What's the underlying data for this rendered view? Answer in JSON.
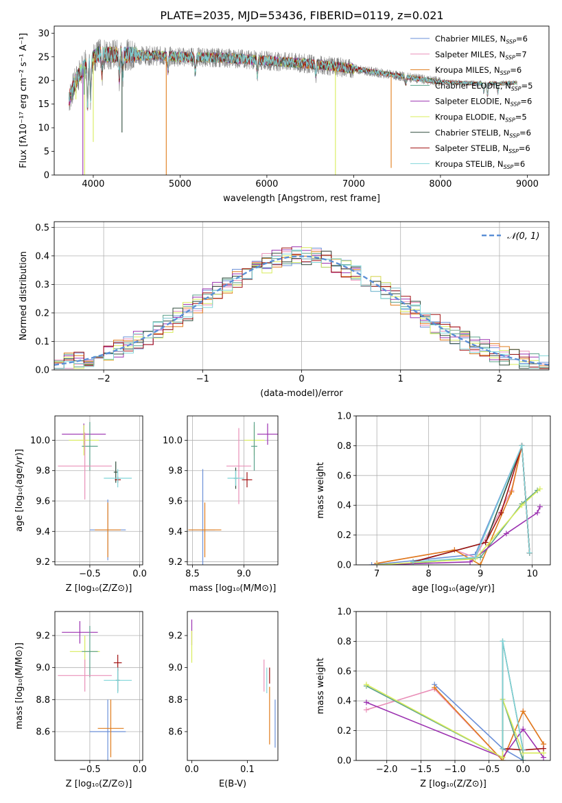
{
  "figure_title": "PLATE=2035, MJD=53436, FIBERID=0119, z=0.021",
  "colors": {
    "chabrier_miles": "#6a8fd8",
    "salpeter_miles": "#e98fb8",
    "kroupa_miles": "#e07b1a",
    "chabrier_elodie": "#5aa08a",
    "salpeter_elodie": "#9b30b0",
    "kroupa_elodie": "#d8ec5a",
    "chabrier_stelib": "#2d4a3a",
    "salpeter_stelib": "#a01010",
    "kroupa_stelib": "#7fd4d8",
    "data": "#808080",
    "normal_curve": "#5b8fd6"
  },
  "legend": [
    {
      "key": "chabrier_miles",
      "name": "Chabrier MILES, N",
      "sub": "SSP",
      "tail": "=6"
    },
    {
      "key": "salpeter_miles",
      "name": "Salpeter MILES, N",
      "sub": "SSP",
      "tail": "=7"
    },
    {
      "key": "kroupa_miles",
      "name": "Kroupa MILES, N",
      "sub": "SSP",
      "tail": "=6"
    },
    {
      "key": "chabrier_elodie",
      "name": "Chabrier ELODIE, N",
      "sub": "SSP",
      "tail": "=5"
    },
    {
      "key": "salpeter_elodie",
      "name": "Salpeter ELODIE, N",
      "sub": "SSP",
      "tail": "=6"
    },
    {
      "key": "kroupa_elodie",
      "name": "Kroupa ELODIE, N",
      "sub": "SSP",
      "tail": "=5"
    },
    {
      "key": "chabrier_stelib",
      "name": "Chabrier STELIB, N",
      "sub": "SSP",
      "tail": "=6"
    },
    {
      "key": "salpeter_stelib",
      "name": "Salpeter STELIB, N",
      "sub": "SSP",
      "tail": "=6"
    },
    {
      "key": "kroupa_stelib",
      "name": "Kroupa STELIB, N",
      "sub": "SSP",
      "tail": "=6"
    }
  ],
  "chart_data": [
    {
      "id": "spectrum",
      "type": "line",
      "xlabel": "wavelength [Angstrom, rest frame]",
      "ylabel": "Flux [fλ10⁻¹⁷ erg cm⁻² s⁻¹ A⁻¹]",
      "xlim": [
        3550,
        9250
      ],
      "ylim": [
        0,
        31.5
      ],
      "xticks": [
        4000,
        5000,
        6000,
        7000,
        8000,
        9000
      ],
      "yticks": [
        0,
        5,
        10,
        15,
        20,
        25,
        30
      ],
      "grid": false,
      "legend_position": "top-right",
      "x_range": [
        3720,
        8880
      ],
      "continuum": [
        [
          3720,
          16
        ],
        [
          3800,
          20
        ],
        [
          3900,
          23
        ],
        [
          4050,
          25.5
        ],
        [
          4300,
          25.5
        ],
        [
          5000,
          25
        ],
        [
          5500,
          24.8
        ],
        [
          6000,
          24.2
        ],
        [
          6500,
          23.5
        ],
        [
          7000,
          22.5
        ],
        [
          7500,
          21
        ],
        [
          8000,
          19.7
        ],
        [
          8500,
          19.3
        ],
        [
          8880,
          19.5
        ]
      ],
      "absorption_dips": [
        [
          3934,
          9
        ],
        [
          3969,
          7.5
        ],
        [
          4101,
          4
        ],
        [
          4300,
          5
        ],
        [
          4340,
          4
        ],
        [
          4861,
          3
        ],
        [
          5175,
          3
        ],
        [
          5890,
          3
        ],
        [
          6563,
          2
        ],
        [
          7600,
          1.5
        ],
        [
          8500,
          2
        ],
        [
          8542,
          2.5
        ],
        [
          8662,
          2
        ]
      ],
      "spikes": [
        [
          3880,
          0,
          "salpeter_elodie"
        ],
        [
          3900,
          0,
          "kroupa_elodie"
        ],
        [
          4841,
          0,
          "kroupa_miles"
        ],
        [
          6790,
          0,
          "kroupa_elodie"
        ],
        [
          7432,
          1.5,
          "kroupa_miles"
        ],
        [
          3800,
          16,
          "kroupa_elodie"
        ],
        [
          4000,
          7,
          "kroupa_elodie"
        ],
        [
          4331,
          9,
          "chabrier_stelib"
        ],
        [
          3895,
          17,
          "chabrier_elodie"
        ]
      ]
    },
    {
      "id": "residuals",
      "type": "histogram",
      "xlabel": "(data-model)/error",
      "ylabel": "Normed distribution",
      "xlim": [
        -2.5,
        2.5
      ],
      "ylim": [
        0,
        0.52
      ],
      "xticks": [
        -2,
        -1,
        0,
        1,
        2
      ],
      "yticks": [
        0,
        0.1,
        0.2,
        0.3,
        0.4,
        0.5
      ],
      "grid": true,
      "legend_position": "top-right",
      "legend_label": "𝒩(0, 1)",
      "bin_width": 0.1,
      "x_start": -2.5
    },
    {
      "id": "age_vs_Z",
      "type": "scatter",
      "xlabel": "Z [log₁₀(Z/Z⊙)]",
      "ylabel": "age  [log₁₀(age/yr)]",
      "xlim": [
        -0.85,
        0.03
      ],
      "ylim": [
        9.18,
        10.16
      ],
      "xticks": [
        -0.5,
        0.0
      ],
      "yticks": [
        9.2,
        9.4,
        9.6,
        9.8,
        10.0
      ],
      "grid": true,
      "points": [
        {
          "key": "salpeter_elodie",
          "x": -0.56,
          "y": 10.04,
          "xerr": 0.22,
          "yerr": 0.07
        },
        {
          "key": "kroupa_elodie",
          "x": -0.56,
          "y": 10.0,
          "xerr": 0.15,
          "yerr": 0.1
        },
        {
          "key": "chabrier_elodie",
          "x": -0.5,
          "y": 9.96,
          "xerr": 0.08,
          "yerr": 0.16
        },
        {
          "key": "salpeter_miles",
          "x": -0.55,
          "y": 9.83,
          "xerr": 0.27,
          "yerr": 0.22
        },
        {
          "key": "chabrier_miles",
          "x": -0.32,
          "y": 9.41,
          "xerr": 0.18,
          "yerr": 0.2
        },
        {
          "key": "kroupa_miles",
          "x": -0.32,
          "y": 9.41,
          "xerr": 0.13,
          "yerr": 0.18
        },
        {
          "key": "chabrier_stelib",
          "x": -0.24,
          "y": 9.79,
          "xerr": 0.02,
          "yerr": 0.07
        },
        {
          "key": "salpeter_stelib",
          "x": -0.22,
          "y": 9.74,
          "xerr": 0.03,
          "yerr": 0.02
        },
        {
          "key": "kroupa_stelib",
          "x": -0.22,
          "y": 9.75,
          "xerr": 0.14,
          "yerr": 0.06
        }
      ]
    },
    {
      "id": "age_vs_mass",
      "type": "scatter",
      "xlabel": "mass [log₁₀(M/M⊙)]",
      "ylabel": "",
      "xlim": [
        8.45,
        9.33
      ],
      "ylim": [
        9.18,
        10.16
      ],
      "xticks": [
        8.5,
        9.0
      ],
      "yticks": [
        9.2,
        9.4,
        9.6,
        9.8,
        10.0
      ],
      "grid": true,
      "points": [
        {
          "key": "salpeter_elodie",
          "x": 9.23,
          "y": 10.04,
          "xerr": 0.1,
          "yerr": 0.07
        },
        {
          "key": "kroupa_elodie",
          "x": 9.1,
          "y": 10.0,
          "xerr": 0.1,
          "yerr": 0.1
        },
        {
          "key": "chabrier_elodie",
          "x": 9.1,
          "y": 9.96,
          "xerr": 0.03,
          "yerr": 0.16
        },
        {
          "key": "salpeter_miles",
          "x": 8.95,
          "y": 9.83,
          "xerr": 0.12,
          "yerr": 0.25
        },
        {
          "key": "chabrier_miles",
          "x": 8.6,
          "y": 9.41,
          "xerr": 0.12,
          "yerr": 0.4
        },
        {
          "key": "kroupa_miles",
          "x": 8.62,
          "y": 9.41,
          "xerr": 0.16,
          "yerr": 0.18
        },
        {
          "key": "chabrier_stelib",
          "x": 8.92,
          "y": 9.75,
          "xerr": 0.02,
          "yerr": 0.07
        },
        {
          "key": "salpeter_stelib",
          "x": 9.03,
          "y": 9.74,
          "xerr": 0.05,
          "yerr": 0.05
        },
        {
          "key": "kroupa_stelib",
          "x": 8.92,
          "y": 9.75,
          "xerr": 0.08,
          "yerr": 0.05
        }
      ]
    },
    {
      "id": "weight_vs_age",
      "type": "line",
      "xlabel": "age  [log₁₀(age/yr)]",
      "ylabel": "mass weight",
      "xlim": [
        6.6,
        10.35
      ],
      "ylim": [
        0,
        1.0
      ],
      "xticks": [
        7,
        8,
        9,
        10
      ],
      "yticks": [
        0,
        0.2,
        0.4,
        0.6,
        0.8,
        1.0
      ],
      "grid": true,
      "series": [
        {
          "key": "chabrier_miles",
          "x": [
            6.9,
            8.9,
            9.8,
            9.95
          ],
          "y": [
            0.0,
            0.07,
            0.8,
            0.08
          ]
        },
        {
          "key": "salpeter_miles",
          "x": [
            7.0,
            8.5,
            8.9,
            9.6,
            9.8,
            9.95
          ],
          "y": [
            0.01,
            0.1,
            0.05,
            0.5,
            0.8,
            0.08
          ]
        },
        {
          "key": "kroupa_miles",
          "x": [
            7.0,
            8.5,
            9.0,
            9.6,
            9.8,
            9.95
          ],
          "y": [
            0.01,
            0.1,
            0.0,
            0.49,
            0.8,
            0.08
          ]
        },
        {
          "key": "chabrier_elodie",
          "x": [
            7.7,
            9.0,
            9.8,
            10.1
          ],
          "y": [
            0.01,
            0.05,
            0.41,
            0.5
          ]
        },
        {
          "key": "salpeter_elodie",
          "x": [
            7.0,
            8.8,
            9.5,
            10.1,
            10.15
          ],
          "y": [
            0.0,
            0.02,
            0.21,
            0.35,
            0.39
          ]
        },
        {
          "key": "kroupa_elodie",
          "x": [
            7.0,
            8.9,
            9.8,
            10.15
          ],
          "y": [
            0.0,
            0.04,
            0.4,
            0.51
          ]
        },
        {
          "key": "chabrier_stelib",
          "x": [
            7.7,
            9.1,
            9.8,
            9.95
          ],
          "y": [
            0.02,
            0.15,
            0.8,
            0.08
          ]
        },
        {
          "key": "salpeter_stelib",
          "x": [
            7.7,
            9.1,
            9.4,
            9.8,
            9.95
          ],
          "y": [
            0.02,
            0.15,
            0.35,
            0.8,
            0.08
          ]
        },
        {
          "key": "kroupa_stelib",
          "x": [
            7.7,
            8.9,
            9.8,
            9.95
          ],
          "y": [
            0.02,
            0.05,
            0.8,
            0.08
          ]
        }
      ]
    },
    {
      "id": "mass_vs_Z",
      "type": "scatter",
      "xlabel": "Z [log₁₀(Z/Z⊙)]",
      "ylabel": "mass [log₁₀(M/M⊙)]",
      "xlim": [
        -0.85,
        0.03
      ],
      "ylim": [
        8.42,
        9.35
      ],
      "xticks": [
        -0.5,
        0.0
      ],
      "yticks": [
        8.6,
        8.8,
        9.0,
        9.2
      ],
      "grid": true,
      "points": [
        {
          "key": "salpeter_elodie",
          "x": -0.6,
          "y": 9.22,
          "xerr": 0.18,
          "yerr": 0.07
        },
        {
          "key": "kroupa_elodie",
          "x": -0.55,
          "y": 9.1,
          "xerr": 0.15,
          "yerr": 0.1
        },
        {
          "key": "chabrier_elodie",
          "x": -0.5,
          "y": 9.1,
          "xerr": 0.08,
          "yerr": 0.16
        },
        {
          "key": "salpeter_miles",
          "x": -0.55,
          "y": 8.95,
          "xerr": 0.27,
          "yerr": 0.1
        },
        {
          "key": "chabrier_miles",
          "x": -0.32,
          "y": 8.6,
          "xerr": 0.18,
          "yerr": 0.2
        },
        {
          "key": "kroupa_miles",
          "x": -0.29,
          "y": 8.62,
          "xerr": 0.13,
          "yerr": 0.18
        },
        {
          "key": "chabrier_stelib",
          "x": -0.22,
          "y": 8.92,
          "xerr": 0.02,
          "yerr": 0.07
        },
        {
          "key": "salpeter_stelib",
          "x": -0.22,
          "y": 9.03,
          "xerr": 0.04,
          "yerr": 0.05
        },
        {
          "key": "kroupa_stelib",
          "x": -0.22,
          "y": 8.92,
          "xerr": 0.14,
          "yerr": 0.08
        }
      ]
    },
    {
      "id": "mass_vs_ebv",
      "type": "scatter",
      "xlabel": "E(B-V)",
      "ylabel": "",
      "xlim": [
        -0.008,
        0.155
      ],
      "ylim": [
        8.42,
        9.35
      ],
      "xticks": [
        0.0,
        0.1
      ],
      "yticks": [
        8.6,
        8.8,
        9.0,
        9.2
      ],
      "grid": false,
      "points": [
        {
          "key": "salpeter_elodie",
          "x": 0.0,
          "y": 9.22,
          "xerr": 0.0,
          "yerr": 0.08
        },
        {
          "key": "kroupa_elodie",
          "x": 0.0,
          "y": 9.13,
          "xerr": 0.0,
          "yerr": 0.1
        },
        {
          "key": "salpeter_miles",
          "x": 0.13,
          "y": 8.95,
          "xerr": 0.0,
          "yerr": 0.1
        },
        {
          "key": "kroupa_miles",
          "x": 0.14,
          "y": 8.7,
          "xerr": 0.0,
          "yerr": 0.18
        },
        {
          "key": "chabrier_miles",
          "x": 0.15,
          "y": 8.65,
          "xerr": 0.0,
          "yerr": 0.15
        },
        {
          "key": "kroupa_stelib",
          "x": 0.135,
          "y": 8.92,
          "xerr": 0.0,
          "yerr": 0.08
        },
        {
          "key": "salpeter_stelib",
          "x": 0.14,
          "y": 8.95,
          "xerr": 0.0,
          "yerr": 0.05
        }
      ]
    },
    {
      "id": "weight_vs_Z",
      "type": "line",
      "xlabel": "Z [log₁₀(Z/Z⊙)]",
      "ylabel": "mass weight",
      "xlim": [
        -2.45,
        0.4
      ],
      "ylim": [
        0,
        1.0
      ],
      "xticks": [
        -2.0,
        -1.5,
        -1.0,
        -0.5,
        0.0
      ],
      "yticks": [
        0,
        0.2,
        0.4,
        0.6,
        0.8,
        1.0
      ],
      "grid": true,
      "series": [
        {
          "key": "chabrier_miles",
          "x": [
            -1.3,
            -0.3,
            0.0
          ],
          "y": [
            0.51,
            0.08,
            0.0
          ]
        },
        {
          "key": "salpeter_miles",
          "x": [
            -2.3,
            -1.3,
            -0.3,
            0.0,
            0.3
          ],
          "y": [
            0.34,
            0.48,
            0.0,
            0.33,
            0.11
          ]
        },
        {
          "key": "kroupa_miles",
          "x": [
            -1.3,
            -0.3,
            0.0,
            0.3
          ],
          "y": [
            0.49,
            0.0,
            0.33,
            0.11
          ]
        },
        {
          "key": "chabrier_elodie",
          "x": [
            -2.3,
            -0.3,
            -0.3,
            0.0,
            0.0
          ],
          "y": [
            0.5,
            0.02,
            0.41,
            0.0,
            0.05
          ]
        },
        {
          "key": "salpeter_elodie",
          "x": [
            -2.3,
            -0.3,
            0.0,
            0.3
          ],
          "y": [
            0.39,
            0.02,
            0.21,
            0.02
          ]
        },
        {
          "key": "kroupa_elodie",
          "x": [
            -2.3,
            -0.3,
            -0.3,
            0.0,
            0.3
          ],
          "y": [
            0.51,
            0.02,
            0.41,
            0.05,
            0.05
          ]
        },
        {
          "key": "chabrier_stelib",
          "x": [
            -0.3,
            -0.3,
            0.0
          ],
          "y": [
            0.08,
            0.8,
            0.07
          ]
        },
        {
          "key": "salpeter_stelib",
          "x": [
            -0.3,
            0.0,
            0.3
          ],
          "y": [
            0.08,
            0.07,
            0.08
          ]
        },
        {
          "key": "kroupa_stelib",
          "x": [
            -0.3,
            -0.3,
            0.0
          ],
          "y": [
            0.08,
            0.8,
            0.07
          ]
        }
      ]
    }
  ]
}
